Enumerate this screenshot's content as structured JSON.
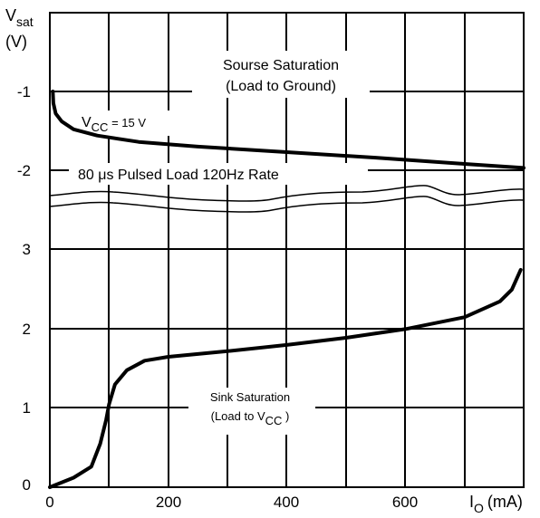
{
  "chart_data": {
    "type": "line",
    "ylabel": {
      "main": "V",
      "sub": "sat",
      "unit": "(V)"
    },
    "xlabel": {
      "main": "I",
      "sub": "O",
      "unit": "(mA)"
    },
    "x_ticks": [
      "0",
      "200",
      "400",
      "600"
    ],
    "y_ticks_upper": [
      "-1",
      "-2"
    ],
    "y_ticks_lower": [
      "3",
      "2",
      "1",
      "0"
    ],
    "xlim": [
      0,
      800
    ],
    "grid": true,
    "annotations": {
      "source_title": "Sourse Saturation",
      "source_subtitle": "(Load to Ground)",
      "vcc_pre": "V",
      "vcc_sub": "CC",
      "vcc_post": " = 15 V",
      "pulse_pre": "80 ",
      "pulse_mu": "μ",
      "pulse_post": "s Pulsed Load 120Hz Rate",
      "sink_title": "Sink Saturation",
      "sink_pre": "(Load to V",
      "sink_sub": "CC",
      "sink_post": " )"
    },
    "series": [
      {
        "role": "source",
        "y_units": "V (upper scale, -1 at top)",
        "x": [
          5,
          6,
          10,
          20,
          40,
          80,
          150,
          250,
          400,
          550,
          700,
          800
        ],
        "y": [
          -1.0,
          -1.15,
          -1.28,
          -1.38,
          -1.48,
          -1.56,
          -1.64,
          -1.7,
          -1.77,
          -1.84,
          -1.92,
          -1.97
        ]
      },
      {
        "role": "sink",
        "y_units": "V (lower scale)",
        "x": [
          0,
          40,
          70,
          85,
          95,
          100,
          110,
          130,
          160,
          200,
          300,
          400,
          500,
          600,
          700,
          760,
          780,
          795
        ],
        "y": [
          0.0,
          0.12,
          0.26,
          0.55,
          0.85,
          1.05,
          1.3,
          1.48,
          1.6,
          1.65,
          1.72,
          1.8,
          1.89,
          2.0,
          2.15,
          2.35,
          2.5,
          2.75
        ]
      }
    ]
  }
}
